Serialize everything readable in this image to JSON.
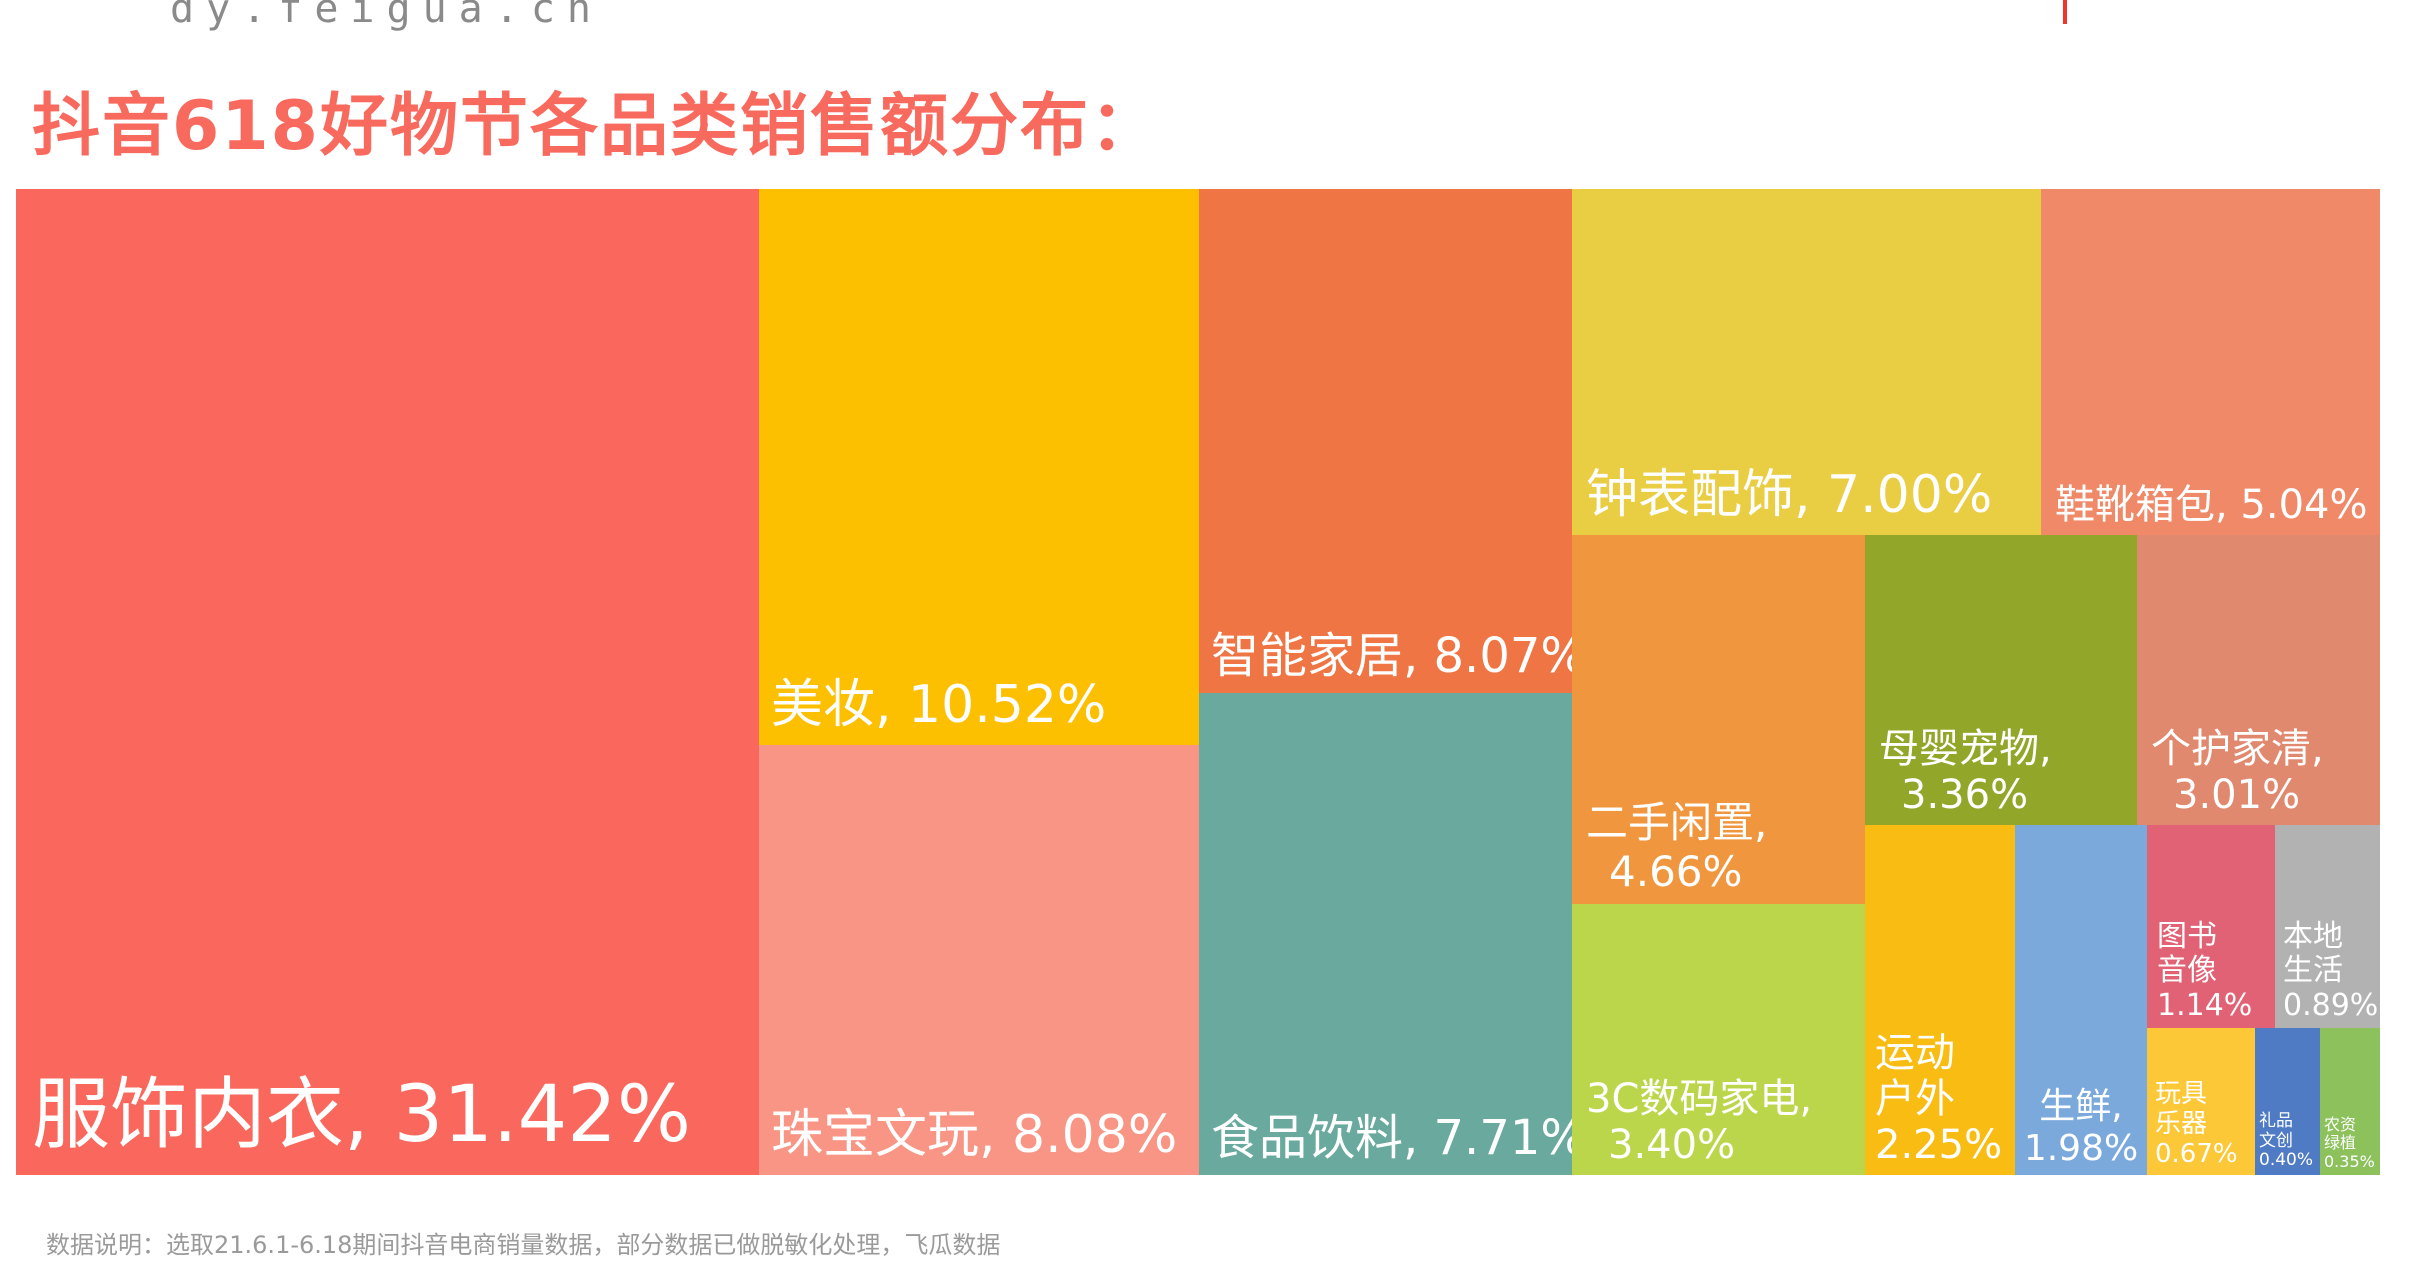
{
  "header": {
    "watermark_text": "dy.feigua.cn",
    "title": "抖音618好物节各品类销售额分布："
  },
  "footer": {
    "note": "数据说明：选取21.6.1-6.18期间抖音电商销量数据，部分数据已做脱敏化处理，飞瓜数据"
  },
  "chart_data": {
    "type": "treemap",
    "title": "抖音618好物节各品类销售额分布：",
    "unit": "%",
    "items": [
      {
        "name": "服饰内衣",
        "value": 31.42,
        "label_lines": [
          "服饰内衣, 31.42%"
        ],
        "color": "#fa675c"
      },
      {
        "name": "美妆",
        "value": 10.52,
        "label_lines": [
          "美妆, 10.52%"
        ],
        "color": "#fdc000"
      },
      {
        "name": "珠宝文玩",
        "value": 8.08,
        "label_lines": [
          "珠宝文玩, 8.08%"
        ],
        "color": "#f89585"
      },
      {
        "name": "智能家居",
        "value": 8.07,
        "label_lines": [
          "智能家居, 8.07%"
        ],
        "color": "#ef7545"
      },
      {
        "name": "食品饮料",
        "value": 7.71,
        "label_lines": [
          "食品饮料, 7.71%"
        ],
        "color": "#6aaa9e"
      },
      {
        "name": "钟表配饰",
        "value": 7.0,
        "label_lines": [
          "钟表配饰, 7.00%"
        ],
        "color": "#e9cd43"
      },
      {
        "name": "鞋靴箱包",
        "value": 5.04,
        "label_lines": [
          "鞋靴箱包, 5.04%"
        ],
        "color": "#f08968"
      },
      {
        "name": "二手闲置",
        "value": 4.66,
        "label_lines": [
          "二手闲置,",
          "4.66%"
        ],
        "color": "#f0963e"
      },
      {
        "name": "3C数码家电",
        "value": 3.4,
        "label_lines": [
          "3C数码家电,",
          "3.40%"
        ],
        "color": "#bcd64c"
      },
      {
        "name": "母婴宠物",
        "value": 3.36,
        "label_lines": [
          "母婴宠物,",
          "3.36%"
        ],
        "color": "#92a62a"
      },
      {
        "name": "个护家清",
        "value": 3.01,
        "label_lines": [
          "个护家清,",
          "3.01%"
        ],
        "color": "#e0896f"
      },
      {
        "name": "运动户外",
        "value": 2.25,
        "label_lines": [
          "运动",
          "户外",
          "2.25%"
        ],
        "color": "#f8bc13"
      },
      {
        "name": "生鲜",
        "value": 1.98,
        "label_lines": [
          "生鲜,",
          "1.98%"
        ],
        "color": "#7ba9dc"
      },
      {
        "name": "图书音像",
        "value": 1.14,
        "label_lines": [
          "图书",
          "音像",
          "1.14%"
        ],
        "color": "#e16275"
      },
      {
        "name": "本地生活",
        "value": 0.89,
        "label_lines": [
          "本地",
          "生活",
          "0.89%"
        ],
        "color": "#b2b2b2"
      },
      {
        "name": "玩具乐器",
        "value": 0.67,
        "label_lines": [
          "玩具",
          "乐器",
          "0.67%"
        ],
        "color": "#fcc838"
      },
      {
        "name": "礼品文创",
        "value": 0.4,
        "label_lines": [
          "礼品",
          "文创",
          "0.40%"
        ],
        "color": "#4f7bc4"
      },
      {
        "name": "农资绿植",
        "value": 0.35,
        "label_lines": [
          "农资",
          "绿植",
          "0.35%"
        ],
        "color": "#8cc15c"
      }
    ]
  }
}
